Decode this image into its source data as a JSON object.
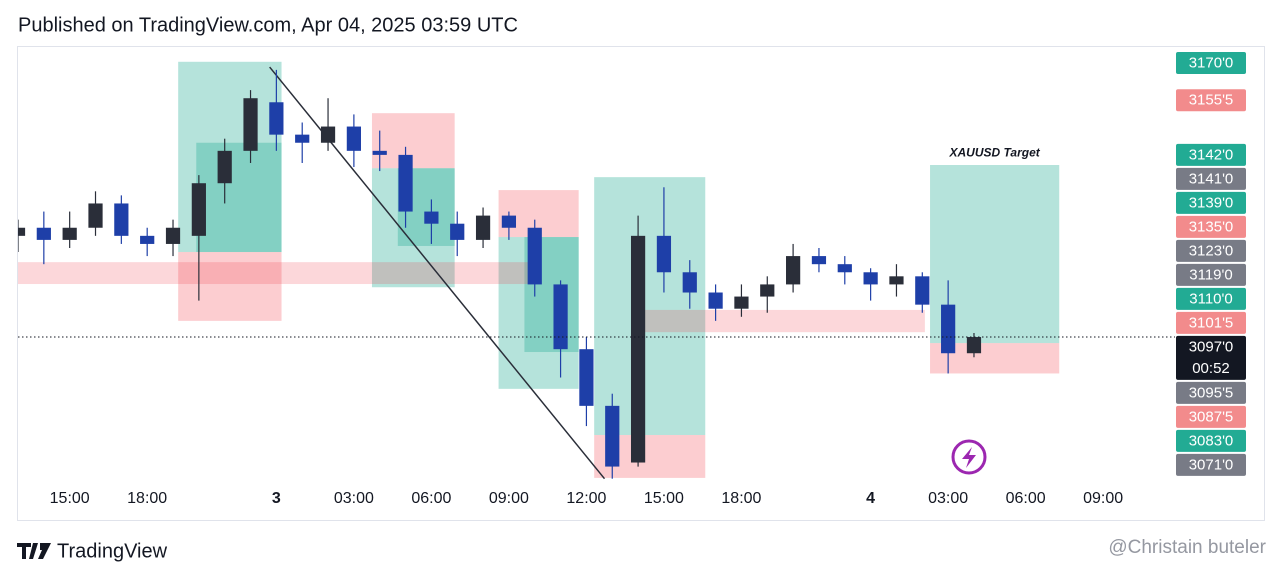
{
  "header": {
    "title": "Published on TradingView.com, Apr 04, 2025 03:59 UTC"
  },
  "chart_data": {
    "type": "candlestick",
    "x": [
      -2,
      -1,
      0,
      1,
      2,
      3,
      4,
      5,
      6,
      7,
      8,
      9,
      10,
      11,
      12,
      13,
      14,
      15,
      16,
      17,
      18,
      19,
      20,
      21,
      22,
      23,
      24,
      25,
      26,
      27,
      28,
      29,
      30,
      31,
      32,
      33,
      34,
      35
    ],
    "open": [
      3122,
      3124,
      3121,
      3124,
      3130,
      3122,
      3120,
      3122,
      3135,
      3143,
      3155,
      3147,
      3145,
      3149,
      3143,
      3142,
      3128,
      3125,
      3121,
      3127,
      3124,
      3110,
      3094,
      3080,
      3066,
      3122,
      3113,
      3108,
      3104,
      3107,
      3110,
      3117,
      3115,
      3113,
      3110,
      3112,
      3105,
      3093
    ],
    "high": [
      3126,
      3128,
      3128,
      3133,
      3132,
      3124,
      3126,
      3137,
      3146,
      3158,
      3163,
      3150,
      3156,
      3152,
      3148,
      3144,
      3131,
      3128,
      3129,
      3128,
      3126,
      3111,
      3097,
      3083,
      3127,
      3134,
      3116,
      3110,
      3110,
      3112,
      3120,
      3119,
      3117,
      3114,
      3115,
      3113,
      3111,
      3098
    ],
    "low": [
      3118,
      3115,
      3119,
      3122,
      3120,
      3117,
      3117,
      3106,
      3130,
      3140,
      3143,
      3140,
      3143,
      3139,
      3138,
      3124,
      3120,
      3117,
      3119,
      3121,
      3107,
      3087,
      3075,
      3062,
      3065,
      3108,
      3104,
      3101,
      3102,
      3103,
      3108,
      3113,
      3110,
      3106,
      3107,
      3103,
      3088,
      3092
    ],
    "close": [
      3124,
      3121,
      3124,
      3130,
      3122,
      3120,
      3124,
      3135,
      3143,
      3156,
      3147,
      3145,
      3149,
      3143,
      3142,
      3128,
      3125,
      3121,
      3127,
      3124,
      3110,
      3094,
      3080,
      3065,
      3122,
      3113,
      3108,
      3104,
      3107,
      3110,
      3117,
      3115,
      3113,
      3110,
      3112,
      3105,
      3093,
      3097
    ],
    "up_color": "#2a2e39",
    "down_color": "#1e3fa8",
    "xlim": [
      -2,
      42.2
    ],
    "ylim": [
      3051.8,
      3168.9
    ],
    "xticks": [
      {
        "value": 0,
        "label": "15:00"
      },
      {
        "value": 3,
        "label": "18:00"
      },
      {
        "value": 8,
        "label": "3"
      },
      {
        "value": 11,
        "label": "03:00"
      },
      {
        "value": 14,
        "label": "06:00"
      },
      {
        "value": 17,
        "label": "09:00"
      },
      {
        "value": 20,
        "label": "12:00"
      },
      {
        "value": 23,
        "label": "15:00"
      },
      {
        "value": 26,
        "label": "18:00"
      },
      {
        "value": 31,
        "label": "4"
      },
      {
        "value": 34,
        "label": "03:00"
      },
      {
        "value": 37,
        "label": "06:00"
      },
      {
        "value": 40,
        "label": "09:00"
      }
    ],
    "yticks": [
      {
        "value": 3170,
        "label": "3170'0"
      },
      {
        "value": 3155.5,
        "label": "3155'5"
      },
      {
        "value": 3142,
        "label": "3142'0"
      },
      {
        "value": 3141,
        "label": "3141'0"
      },
      {
        "value": 3139,
        "label": "3139'0"
      },
      {
        "value": 3135,
        "label": "3135'0"
      },
      {
        "value": 3123,
        "label": "3123'0"
      },
      {
        "value": 3119,
        "label": "3119'0"
      },
      {
        "value": 3110,
        "label": "3110'0"
      },
      {
        "value": 3101.5,
        "label": "3101'5"
      },
      {
        "value": 3097,
        "label": "3097'0"
      },
      {
        "value": 3095.5,
        "label": "3095'5"
      },
      {
        "value": 3087.5,
        "label": "3087'5"
      },
      {
        "value": 3083,
        "label": "3083'0"
      },
      {
        "value": 3071,
        "label": "3071'0"
      }
    ],
    "ytick_colors": [
      "#22ab94",
      "#f28b8c",
      "#22ab94",
      "#787b86",
      "#22ab94",
      "#f28b8c",
      "#787b86",
      "#787b86",
      "#22ab94",
      "#f28b8c",
      "#131722",
      "#787b86",
      "#f28b8c",
      "#22ab94",
      "#787b86"
    ],
    "current_price": 3097,
    "countdown": "00:52",
    "zones": [
      {
        "x": [
          4.2,
          8.2
        ],
        "y": [
          3118,
          3165
        ],
        "color": "#22ab9455"
      },
      {
        "x": [
          4.9,
          8.2
        ],
        "y": [
          3118,
          3145
        ],
        "color": "#22ab9455"
      },
      {
        "x": [
          4.2,
          8.2
        ],
        "y": [
          3101,
          3118
        ],
        "color": "#f2364540"
      },
      {
        "x": [
          11.7,
          14.9
        ],
        "y": [
          3138.7,
          3152.3
        ],
        "color": "#f2364540"
      },
      {
        "x": [
          11.7,
          14.9
        ],
        "y": [
          3109.3,
          3138.7
        ],
        "color": "#22ab9455"
      },
      {
        "x": [
          12.7,
          14.9
        ],
        "y": [
          3119.5,
          3138.7
        ],
        "color": "#22ab9455"
      },
      {
        "x": [
          16.6,
          19.7
        ],
        "y": [
          3121.7,
          3133.3
        ],
        "color": "#f2364540"
      },
      {
        "x": [
          16.6,
          19.7
        ],
        "y": [
          3084.2,
          3121.7
        ],
        "color": "#22ab9455"
      },
      {
        "x": [
          17.6,
          19.7
        ],
        "y": [
          3093.3,
          3121.7
        ],
        "color": "#22ab9455"
      },
      {
        "x": [
          20.3,
          24.6
        ],
        "y": [
          3072.8,
          3136.5
        ],
        "color": "#22ab9455"
      },
      {
        "x": [
          20.3,
          24.6
        ],
        "y": [
          3062.2,
          3072.8
        ],
        "color": "#f2364540"
      },
      {
        "x": [
          33.3,
          38.3
        ],
        "y": [
          3095.5,
          3139.5
        ],
        "color": "#22ab9455"
      },
      {
        "x": [
          33.3,
          38.3
        ],
        "y": [
          3088,
          3095.5
        ],
        "color": "#f2364540"
      },
      {
        "x": [
          -2,
          18
        ],
        "y": [
          3110.1,
          3115.5
        ],
        "color": "#f2364533"
      },
      {
        "x": [
          21.9,
          33.1
        ],
        "y": [
          3098.2,
          3103.7
        ],
        "color": "#f2364533"
      }
    ],
    "trend_line": {
      "x": [
        7.74,
        20.7
      ],
      "y": [
        3163.7,
        3062
      ]
    },
    "annotations": [
      {
        "text": "XAUUSD Target",
        "x": 35.8,
        "y": 3142.4
      }
    ]
  },
  "footer": {
    "brand": "TradingView",
    "watermark": "@Christain buteler"
  }
}
